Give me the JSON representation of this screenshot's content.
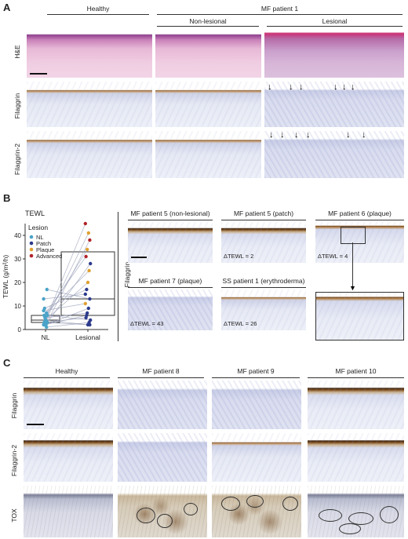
{
  "panels": {
    "a": "A",
    "b": "B",
    "c": "C"
  },
  "panel_a": {
    "group_healthy": "Healthy",
    "group_mf": "MF patient 1",
    "sub_nonlesional": "Non-lesional",
    "sub_lesional": "Lesional",
    "rows": [
      "H&E",
      "Filaggrin",
      "Filaggrin-2"
    ]
  },
  "panel_b": {
    "tewl_title": "TEWL",
    "side_label": "Filaggrin",
    "tiles": [
      {
        "title": "MF patient 5 (non-lesional)",
        "note": ""
      },
      {
        "title": "MF patient 5 (patch)",
        "note": "ΔTEWL = 2"
      },
      {
        "title": "MF patient 6 (plaque)",
        "note": "ΔTEWL = 4"
      },
      {
        "title": "MF patient 7 (plaque)",
        "note": "ΔTEWL = 43"
      },
      {
        "title": "SS patient 1 (erythroderma)",
        "note": "ΔTEWL = 26"
      }
    ]
  },
  "chart_data": {
    "type": "scatter",
    "title": "TEWL",
    "ylabel": "TEWL (g/m²/h)",
    "xlabel": "",
    "categories": [
      "NL",
      "Lesional"
    ],
    "ylim": [
      0,
      45
    ],
    "yticks": [
      0,
      10,
      20,
      30,
      40
    ],
    "legend": {
      "title": "Lesion",
      "placement": "top-left",
      "entries": [
        {
          "name": "NL",
          "color": "#4aa3c8"
        },
        {
          "name": "Patch",
          "color": "#2b3a8c"
        },
        {
          "name": "Plaque",
          "color": "#e0a030"
        },
        {
          "name": "Advanced",
          "color": "#b0232a"
        }
      ]
    },
    "boxplot": {
      "NL": {
        "q1": 3,
        "median": 4,
        "q3": 6,
        "min": 1,
        "max": 17
      },
      "Lesional": {
        "q1": 6,
        "median": 13,
        "q3": 33,
        "min": 2,
        "max": 45
      }
    },
    "pairs": [
      {
        "nl": 2,
        "les": 45,
        "type": "Advanced"
      },
      {
        "nl": 3,
        "les": 38,
        "type": "Advanced"
      },
      {
        "nl": 4,
        "les": 41,
        "type": "Plaque"
      },
      {
        "nl": 5,
        "les": 34,
        "type": "Plaque"
      },
      {
        "nl": 6,
        "les": 31,
        "type": "Advanced"
      },
      {
        "nl": 3,
        "les": 28,
        "type": "Patch"
      },
      {
        "nl": 7,
        "les": 25,
        "type": "Plaque"
      },
      {
        "nl": 4,
        "les": 20,
        "type": "Plaque"
      },
      {
        "nl": 9,
        "les": 17,
        "type": "Patch"
      },
      {
        "nl": 13,
        "les": 15,
        "type": "Patch"
      },
      {
        "nl": 17,
        "les": 13,
        "type": "Patch"
      },
      {
        "nl": 2,
        "les": 9,
        "type": "Patch"
      },
      {
        "nl": 5,
        "les": 7,
        "type": "Patch"
      },
      {
        "nl": 3,
        "les": 5,
        "type": "Patch"
      },
      {
        "nl": 6,
        "les": 4,
        "type": "Patch"
      },
      {
        "nl": 1,
        "les": 3,
        "type": "Patch"
      },
      {
        "nl": 4,
        "les": 2,
        "type": "Patch"
      },
      {
        "nl": 2,
        "les": 6,
        "type": "Patch"
      },
      {
        "nl": 8,
        "les": 11,
        "type": "Plaque"
      },
      {
        "nl": 3,
        "les": 2,
        "type": "Patch"
      }
    ]
  },
  "panel_c": {
    "columns": [
      "Healthy",
      "MF patient 8",
      "MF patient 9",
      "MF patient 10"
    ],
    "rows": [
      "Filaggrin",
      "Filaggrin-2",
      "TOX"
    ]
  }
}
